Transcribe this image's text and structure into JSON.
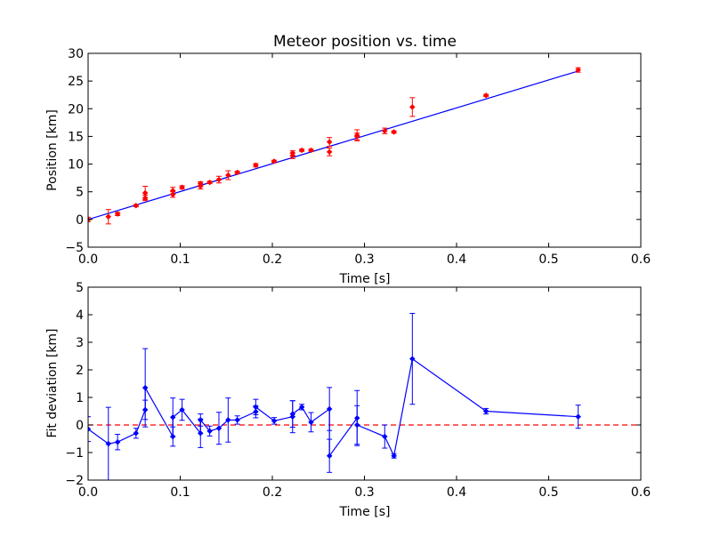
{
  "chart_data": [
    {
      "type": "scatter",
      "title": "Meteor position vs. time",
      "xlabel": "Time [s]",
      "ylabel": "Position [km]",
      "xlim": [
        0.0,
        0.6
      ],
      "ylim": [
        -5,
        30
      ],
      "x_ticks": [
        "0.0",
        "0.1",
        "0.2",
        "0.3",
        "0.4",
        "0.5",
        "0.6"
      ],
      "y_ticks": [
        "−5",
        "0",
        "5",
        "10",
        "15",
        "20",
        "25",
        "30"
      ],
      "grid": false,
      "colors": {
        "points": "#ff0000",
        "fit": "#0000ff"
      },
      "points": [
        {
          "x": 0.0,
          "y": 0.0,
          "err": 0.4
        },
        {
          "x": 0.022,
          "y": 0.5,
          "err": 1.3
        },
        {
          "x": 0.032,
          "y": 1.0,
          "err": 0.3
        },
        {
          "x": 0.052,
          "y": 2.5,
          "err": 0.2
        },
        {
          "x": 0.062,
          "y": 3.9,
          "err": 0.5
        },
        {
          "x": 0.062,
          "y": 4.8,
          "err": 1.2
        },
        {
          "x": 0.092,
          "y": 4.5,
          "err": 0.5
        },
        {
          "x": 0.092,
          "y": 5.2,
          "err": 0.6
        },
        {
          "x": 0.102,
          "y": 5.8,
          "err": 0.3
        },
        {
          "x": 0.122,
          "y": 6.0,
          "err": 0.5
        },
        {
          "x": 0.122,
          "y": 6.5,
          "err": 0.3
        },
        {
          "x": 0.132,
          "y": 6.7,
          "err": 0.2
        },
        {
          "x": 0.142,
          "y": 7.2,
          "err": 0.6
        },
        {
          "x": 0.152,
          "y": 8.0,
          "err": 0.8
        },
        {
          "x": 0.162,
          "y": 8.5,
          "err": 0.2
        },
        {
          "x": 0.182,
          "y": 9.8,
          "err": 0.3
        },
        {
          "x": 0.202,
          "y": 10.5,
          "err": 0.2
        },
        {
          "x": 0.222,
          "y": 11.5,
          "err": 0.5
        },
        {
          "x": 0.222,
          "y": 12.0,
          "err": 0.4
        },
        {
          "x": 0.232,
          "y": 12.5,
          "err": 0.2
        },
        {
          "x": 0.242,
          "y": 12.5,
          "err": 0.2
        },
        {
          "x": 0.262,
          "y": 12.2,
          "err": 0.7
        },
        {
          "x": 0.262,
          "y": 14.0,
          "err": 0.8
        },
        {
          "x": 0.292,
          "y": 15.0,
          "err": 0.6
        },
        {
          "x": 0.292,
          "y": 15.2,
          "err": 1.0
        },
        {
          "x": 0.322,
          "y": 16.0,
          "err": 0.5
        },
        {
          "x": 0.332,
          "y": 15.8,
          "err": 0.2
        },
        {
          "x": 0.352,
          "y": 20.3,
          "err": 1.7
        },
        {
          "x": 0.432,
          "y": 22.4,
          "err": 0.2
        },
        {
          "x": 0.532,
          "y": 27.0,
          "err": 0.4
        }
      ],
      "fit_line": {
        "x": [
          0.0,
          0.532
        ],
        "y": [
          0.0,
          26.8
        ]
      }
    },
    {
      "type": "line",
      "title": "",
      "xlabel": "Time [s]",
      "ylabel": "Fit deviation [km]",
      "xlim": [
        0.0,
        0.6
      ],
      "ylim": [
        -2,
        5
      ],
      "x_ticks": [
        "0.0",
        "0.1",
        "0.2",
        "0.3",
        "0.4",
        "0.5",
        "0.6"
      ],
      "y_ticks": [
        "−2",
        "−1",
        "0",
        "1",
        "2",
        "3",
        "4",
        "5"
      ],
      "grid": false,
      "colors": {
        "series": "#0000ff",
        "zero_line": "#ff0000"
      },
      "zero_line": 0,
      "points": [
        {
          "x": 0.0,
          "y": -0.15,
          "err": 0.45
        },
        {
          "x": 0.022,
          "y": -0.68,
          "err": 1.32
        },
        {
          "x": 0.032,
          "y": -0.62,
          "err": 0.28
        },
        {
          "x": 0.052,
          "y": -0.3,
          "err": 0.18
        },
        {
          "x": 0.062,
          "y": 0.55,
          "err": 0.35
        },
        {
          "x": 0.062,
          "y": 1.35,
          "err": 1.42
        },
        {
          "x": 0.092,
          "y": -0.42,
          "err": 0.35
        },
        {
          "x": 0.092,
          "y": 0.28,
          "err": 0.7
        },
        {
          "x": 0.102,
          "y": 0.55,
          "err": 0.38
        },
        {
          "x": 0.122,
          "y": -0.3,
          "err": 0.52
        },
        {
          "x": 0.122,
          "y": 0.18,
          "err": 0.22
        },
        {
          "x": 0.132,
          "y": -0.22,
          "err": 0.18
        },
        {
          "x": 0.142,
          "y": -0.12,
          "err": 0.58
        },
        {
          "x": 0.152,
          "y": 0.18,
          "err": 0.8
        },
        {
          "x": 0.162,
          "y": 0.18,
          "err": 0.15
        },
        {
          "x": 0.182,
          "y": 0.48,
          "err": 0.22
        },
        {
          "x": 0.182,
          "y": 0.65,
          "err": 0.28
        },
        {
          "x": 0.202,
          "y": 0.15,
          "err": 0.12
        },
        {
          "x": 0.222,
          "y": 0.3,
          "err": 0.58
        },
        {
          "x": 0.222,
          "y": 0.4,
          "err": 0.48
        },
        {
          "x": 0.232,
          "y": 0.65,
          "err": 0.1
        },
        {
          "x": 0.242,
          "y": 0.1,
          "err": 0.35
        },
        {
          "x": 0.262,
          "y": 0.58,
          "err": 0.78
        },
        {
          "x": 0.262,
          "y": -1.12,
          "err": 0.6
        },
        {
          "x": 0.292,
          "y": 0.25,
          "err": 1.0
        },
        {
          "x": 0.292,
          "y": 0.0,
          "err": 0.7
        },
        {
          "x": 0.322,
          "y": -0.42,
          "err": 0.42
        },
        {
          "x": 0.332,
          "y": -1.12,
          "err": 0.08
        },
        {
          "x": 0.352,
          "y": 2.4,
          "err": 1.65
        },
        {
          "x": 0.432,
          "y": 0.5,
          "err": 0.1
        },
        {
          "x": 0.532,
          "y": 0.3,
          "err": 0.42
        }
      ]
    }
  ]
}
